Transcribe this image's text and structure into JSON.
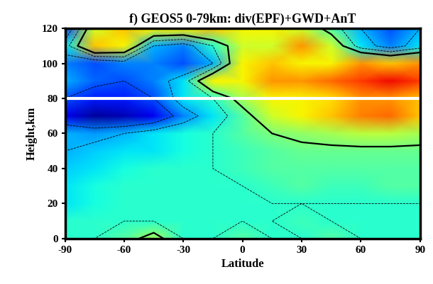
{
  "chart_data": {
    "type": "heatmap",
    "title": "f) GEOS5 0-79km: div(EPF)+GWD+AnT",
    "x_label": "Latitude",
    "y_label": "Height,km",
    "x": [
      -90,
      -75,
      -60,
      -45,
      -30,
      -15,
      0,
      15,
      30,
      45,
      60,
      75,
      90
    ],
    "y": [
      0,
      10,
      20,
      30,
      40,
      50,
      60,
      70,
      80,
      90,
      100,
      110,
      120
    ],
    "cells": [
      [
        -0.2,
        -0.2,
        -0.1,
        0.1,
        -0.2,
        -0.2,
        -0.1,
        -0.2,
        -0.2,
        -0.1,
        -0.2,
        -0.2,
        -0.2
      ],
      [
        -0.2,
        -0.2,
        -0.2,
        -0.2,
        -0.2,
        -0.2,
        -0.2,
        -0.2,
        -0.15,
        -0.2,
        -0.2,
        -0.2,
        -0.2
      ],
      [
        -0.3,
        -0.25,
        -0.2,
        -0.2,
        -0.2,
        -0.2,
        -0.2,
        -0.2,
        -0.2,
        -0.2,
        -0.2,
        -0.2,
        -0.2
      ],
      [
        -0.3,
        -0.25,
        -0.2,
        -0.2,
        -0.2,
        -0.2,
        -0.2,
        -0.15,
        -0.1,
        -0.15,
        -0.15,
        -0.1,
        -0.1
      ],
      [
        -0.35,
        -0.3,
        -0.25,
        -0.2,
        -0.2,
        -0.2,
        -0.15,
        -0.1,
        -0.1,
        -0.1,
        -0.1,
        -0.1,
        -0.1
      ],
      [
        -0.4,
        -0.35,
        -0.3,
        -0.3,
        -0.25,
        -0.2,
        -0.15,
        -0.1,
        -0.05,
        -0.05,
        -0.05,
        -0.05,
        -0.05
      ],
      [
        -0.4,
        -0.45,
        -0.4,
        -0.3,
        -0.25,
        -0.2,
        -0.1,
        0.0,
        0.05,
        0.1,
        0.15,
        0.15,
        0.1
      ],
      [
        -0.8,
        -0.95,
        -0.9,
        -0.8,
        -0.5,
        -0.3,
        -0.1,
        0.2,
        0.3,
        0.4,
        0.55,
        0.6,
        0.4
      ],
      [
        -0.6,
        -0.7,
        -0.7,
        -0.6,
        -0.3,
        -0.2,
        0.1,
        0.3,
        0.3,
        0.35,
        0.5,
        0.5,
        0.4
      ],
      [
        -0.4,
        -0.55,
        -0.6,
        -0.5,
        -0.3,
        0.3,
        0.3,
        0.5,
        0.5,
        0.6,
        0.7,
        0.8,
        0.7
      ],
      [
        -0.5,
        -0.6,
        -0.5,
        -0.5,
        -0.6,
        -0.4,
        0.3,
        0.4,
        0.3,
        0.3,
        0.5,
        0.4,
        0.5
      ],
      [
        -0.3,
        0.4,
        0.3,
        -0.4,
        -0.5,
        -0.2,
        0.2,
        0.2,
        0.5,
        0.2,
        -0.3,
        -0.5,
        -0.3
      ],
      [
        -0.6,
        0.2,
        0.4,
        0.3,
        0.3,
        0.4,
        0.3,
        0.3,
        0.2,
        -0.1,
        -0.4,
        -0.6,
        -0.4
      ]
    ],
    "clim": [
      -1,
      1
    ],
    "contour_levels": [
      -0.6,
      -0.4,
      -0.2,
      0
    ],
    "separator_height": 80,
    "xlim": [
      -90,
      90
    ],
    "xticks": [
      -90,
      -60,
      -30,
      0,
      30,
      60,
      90
    ],
    "ylim": [
      0,
      120
    ],
    "yticks": [
      0,
      20,
      40,
      60,
      80,
      100,
      120
    ]
  }
}
